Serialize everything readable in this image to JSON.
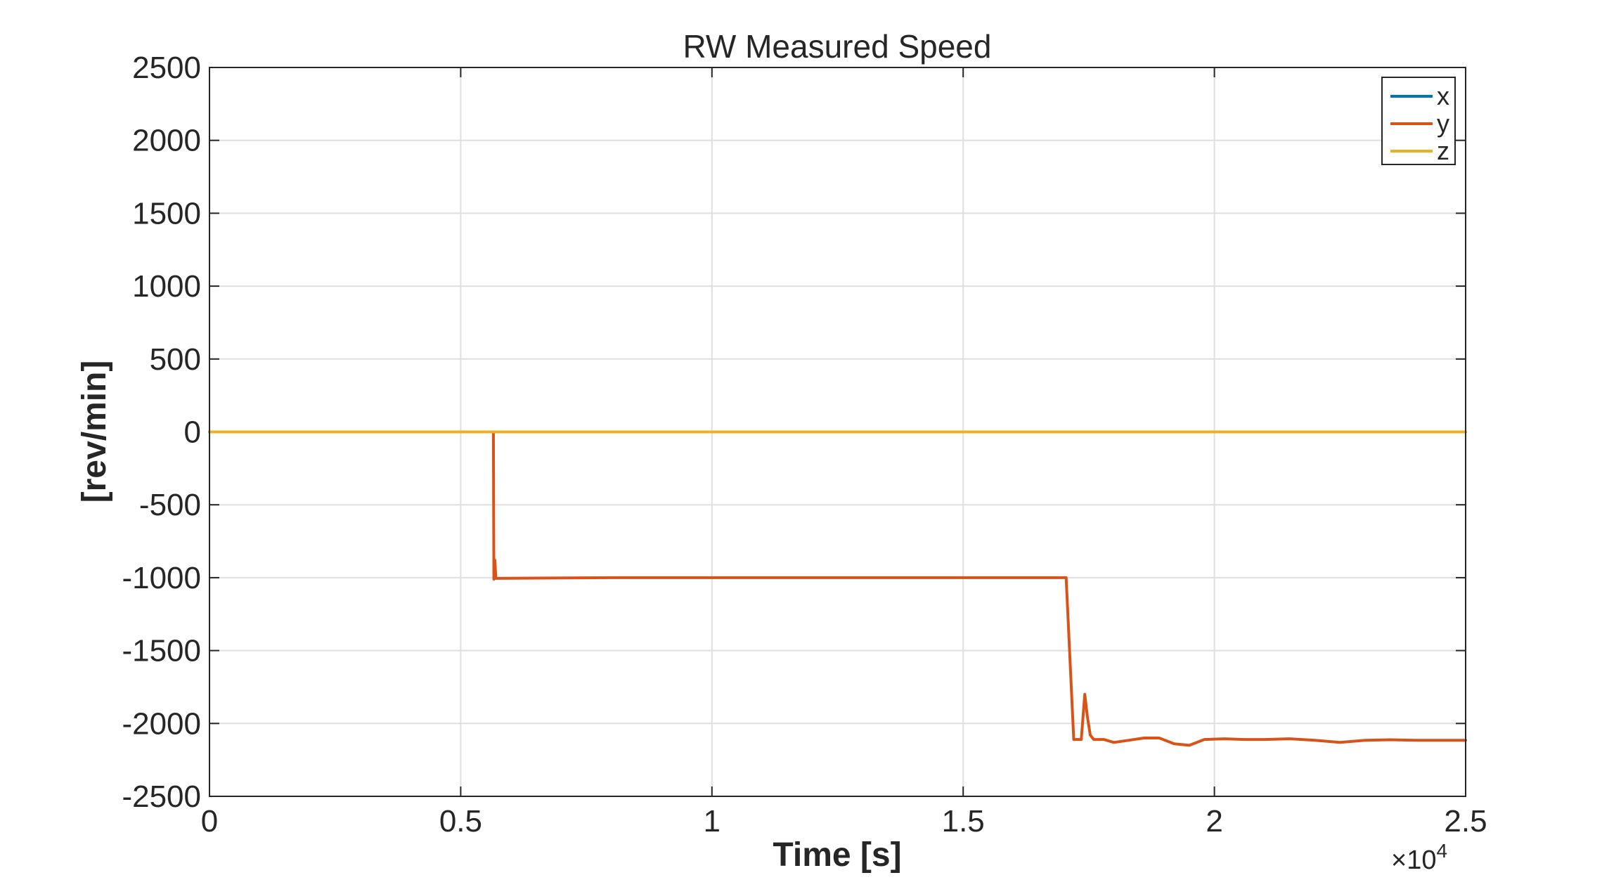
{
  "chart_data": {
    "type": "line",
    "title": "RW Measured Speed",
    "xlabel": "Time [s]",
    "ylabel": "[rev/min]",
    "x_exponent_label": "×10",
    "x_exponent_power": "4",
    "xlim": [
      0,
      25000
    ],
    "ylim": [
      -2500,
      2500
    ],
    "x_ticks": [
      0,
      5000,
      10000,
      15000,
      20000,
      25000
    ],
    "x_tick_labels": [
      "0",
      "0.5",
      "1",
      "1.5",
      "2",
      "2.5"
    ],
    "y_ticks": [
      2500,
      2000,
      1500,
      1000,
      500,
      0,
      -500,
      -1000,
      -1500,
      -2000,
      -2500
    ],
    "y_tick_labels": [
      "2500",
      "2000",
      "1500",
      "1000",
      "500",
      "0",
      "-500",
      "-1000",
      "-1500",
      "-2000",
      "-2500"
    ],
    "grid": true,
    "legend_position": "top-right",
    "series": [
      {
        "name": "x",
        "color": "#0072BD",
        "points": [
          [
            0,
            0
          ],
          [
            25000,
            0
          ]
        ]
      },
      {
        "name": "y",
        "color": "#D95319",
        "points": [
          [
            0,
            0
          ],
          [
            5650,
            0
          ],
          [
            5660,
            -1010
          ],
          [
            5680,
            -880
          ],
          [
            5700,
            -1005
          ],
          [
            8000,
            -1000
          ],
          [
            12000,
            -1000
          ],
          [
            17050,
            -1000
          ],
          [
            17200,
            -2110
          ],
          [
            17350,
            -2110
          ],
          [
            17380,
            -1980
          ],
          [
            17420,
            -1800
          ],
          [
            17470,
            -1950
          ],
          [
            17530,
            -2080
          ],
          [
            17600,
            -2110
          ],
          [
            17800,
            -2110
          ],
          [
            18000,
            -2130
          ],
          [
            18300,
            -2115
          ],
          [
            18600,
            -2100
          ],
          [
            18900,
            -2100
          ],
          [
            19200,
            -2140
          ],
          [
            19500,
            -2150
          ],
          [
            19800,
            -2110
          ],
          [
            20200,
            -2105
          ],
          [
            20600,
            -2110
          ],
          [
            21000,
            -2110
          ],
          [
            21500,
            -2105
          ],
          [
            22000,
            -2115
          ],
          [
            22500,
            -2130
          ],
          [
            23000,
            -2115
          ],
          [
            23500,
            -2112
          ],
          [
            24000,
            -2115
          ],
          [
            24500,
            -2115
          ],
          [
            25000,
            -2115
          ]
        ]
      },
      {
        "name": "z",
        "color": "#EDB120",
        "points": [
          [
            0,
            0
          ],
          [
            25000,
            0
          ]
        ]
      }
    ]
  }
}
